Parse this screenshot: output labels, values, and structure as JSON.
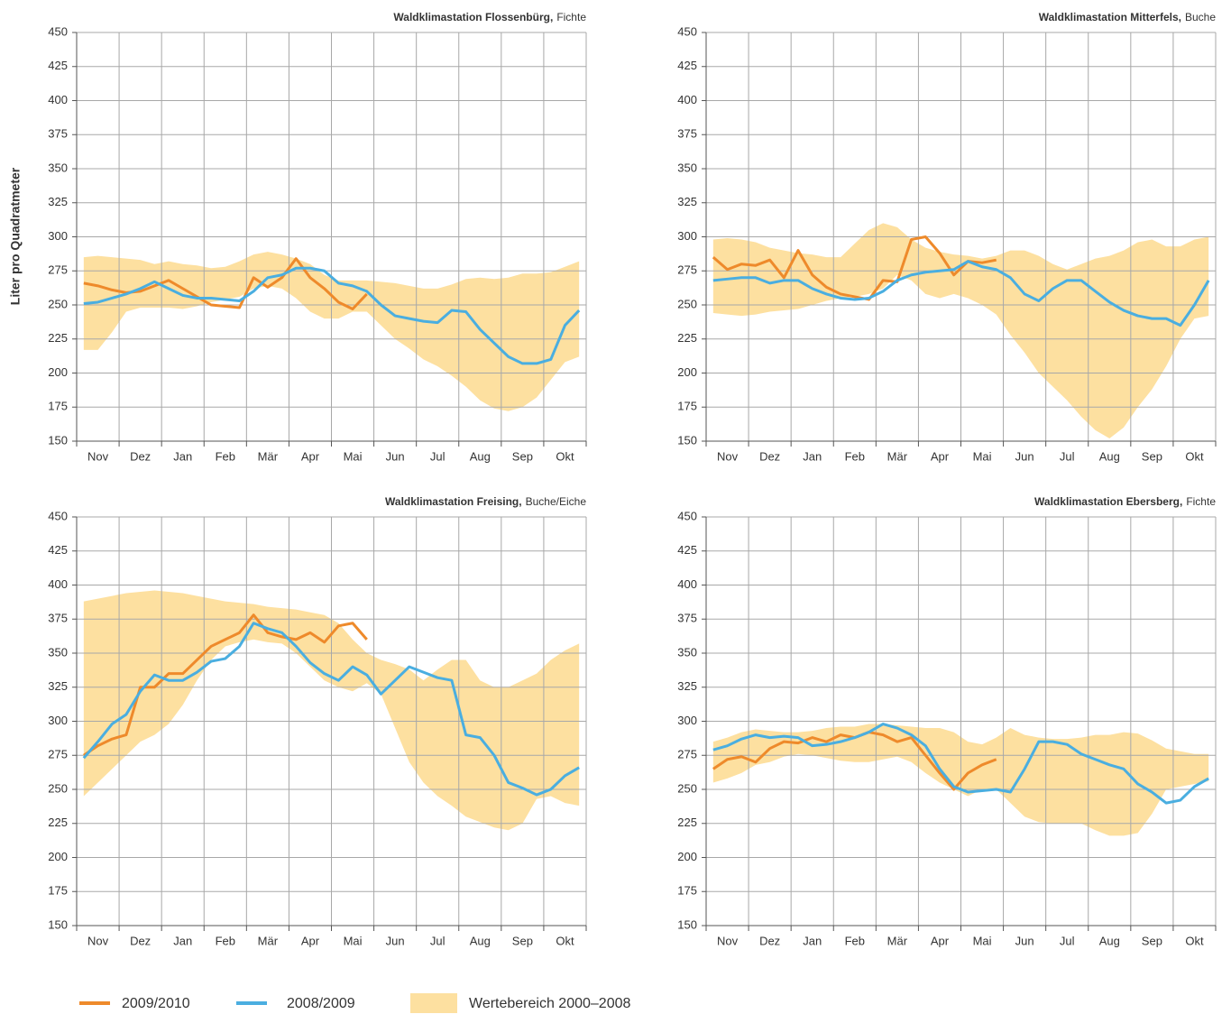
{
  "chart_data": [
    {
      "type": "line",
      "title": "Waldklimastation Flossenbürg,",
      "subtitle": "Fichte",
      "y_label": "Liter pro Quadratmeter",
      "categories": [
        null,
        "Nov",
        null,
        null,
        "Dez",
        null,
        null,
        "Jan",
        null,
        null,
        "Feb",
        null,
        null,
        "Mär",
        null,
        null,
        "Apr",
        null,
        null,
        "Mai",
        null,
        null,
        "Jun",
        null,
        null,
        "Jul",
        null,
        null,
        "Aug",
        null,
        null,
        "Sep",
        null,
        null,
        "Okt",
        null
      ],
      "ylim": [
        150,
        450
      ],
      "yticks": [
        150,
        175,
        200,
        225,
        250,
        275,
        300,
        325,
        350,
        375,
        400,
        425,
        450
      ],
      "grid": true,
      "band": {
        "name": "Wertebereich 2000–2008",
        "color": "#fde0a0",
        "high": [
          285,
          286,
          285,
          284,
          283,
          280,
          282,
          280,
          279,
          277,
          278,
          282,
          287,
          289,
          287,
          284,
          280,
          272,
          268,
          268,
          268,
          267,
          266,
          264,
          262,
          262,
          265,
          269,
          270,
          269,
          270,
          273,
          273,
          274,
          278,
          282
        ],
        "low": [
          217,
          217,
          230,
          245,
          248,
          248,
          248,
          247,
          249,
          252,
          254,
          256,
          262,
          264,
          262,
          255,
          245,
          240,
          240,
          245,
          245,
          235,
          225,
          218,
          210,
          205,
          198,
          190,
          180,
          174,
          172,
          175,
          182,
          195,
          208,
          212
        ]
      },
      "series": [
        {
          "name": "2009/2010",
          "color": "#ee8a2b",
          "values": [
            266,
            264,
            261,
            259,
            260,
            264,
            268,
            262,
            256,
            250,
            249,
            248,
            270,
            263,
            270,
            284,
            270,
            262,
            252,
            247,
            258,
            null,
            null,
            null,
            null,
            null,
            null,
            null,
            null,
            null,
            null,
            null,
            null,
            null,
            null,
            null
          ]
        },
        {
          "name": "2008/2009",
          "color": "#4aaee0",
          "values": [
            251,
            252,
            255,
            258,
            262,
            267,
            262,
            257,
            255,
            255,
            254,
            253,
            260,
            270,
            272,
            277,
            277,
            275,
            266,
            264,
            260,
            250,
            242,
            240,
            238,
            237,
            246,
            245,
            232,
            222,
            212,
            207,
            207,
            210,
            235,
            246
          ]
        }
      ]
    },
    {
      "type": "line",
      "title": "Waldklimastation Mitterfels,",
      "subtitle": "Buche",
      "categories": [
        null,
        "Nov",
        null,
        null,
        "Dez",
        null,
        null,
        "Jan",
        null,
        null,
        "Feb",
        null,
        null,
        "Mär",
        null,
        null,
        "Apr",
        null,
        null,
        "Mai",
        null,
        null,
        "Jun",
        null,
        null,
        "Jul",
        null,
        null,
        "Aug",
        null,
        null,
        "Sep",
        null,
        null,
        "Okt",
        null
      ],
      "ylim": [
        150,
        450
      ],
      "yticks": [
        150,
        175,
        200,
        225,
        250,
        275,
        300,
        325,
        350,
        375,
        400,
        425,
        450
      ],
      "grid": true,
      "band": {
        "name": "Wertebereich 2000–2008",
        "color": "#fde0a0",
        "high": [
          298,
          299,
          298,
          296,
          292,
          290,
          288,
          287,
          285,
          285,
          295,
          305,
          310,
          307,
          298,
          292,
          289,
          287,
          286,
          284,
          286,
          290,
          290,
          286,
          280,
          276,
          280,
          284,
          286,
          290,
          296,
          298,
          293,
          293,
          298,
          300
        ],
        "low": [
          244,
          243,
          242,
          243,
          245,
          246,
          247,
          250,
          253,
          255,
          256,
          258,
          262,
          272,
          268,
          258,
          255,
          258,
          255,
          250,
          243,
          228,
          215,
          200,
          190,
          180,
          168,
          158,
          152,
          160,
          175,
          188,
          205,
          225,
          240,
          242
        ]
      },
      "series": [
        {
          "name": "2009/2010",
          "color": "#ee8a2b",
          "values": [
            285,
            276,
            280,
            279,
            283,
            270,
            290,
            272,
            263,
            258,
            256,
            254,
            268,
            267,
            298,
            300,
            288,
            272,
            282,
            281,
            283,
            null,
            null,
            null,
            null,
            null,
            null,
            null,
            null,
            null,
            null,
            null,
            null,
            null,
            null,
            null
          ]
        },
        {
          "name": "2008/2009",
          "color": "#4aaee0",
          "values": [
            268,
            269,
            270,
            270,
            266,
            268,
            268,
            262,
            258,
            255,
            254,
            255,
            260,
            268,
            272,
            274,
            275,
            276,
            282,
            278,
            276,
            270,
            258,
            253,
            262,
            268,
            268,
            260,
            252,
            246,
            242,
            240,
            240,
            235,
            250,
            268
          ]
        }
      ]
    },
    {
      "type": "line",
      "title": "Waldklimastation Freising,",
      "subtitle": "Buche/Eiche",
      "categories": [
        null,
        "Nov",
        null,
        null,
        "Dez",
        null,
        null,
        "Jan",
        null,
        null,
        "Feb",
        null,
        null,
        "Mär",
        null,
        null,
        "Apr",
        null,
        null,
        "Mai",
        null,
        null,
        "Jun",
        null,
        null,
        "Jul",
        null,
        null,
        "Aug",
        null,
        null,
        "Sep",
        null,
        null,
        "Okt",
        null
      ],
      "ylim": [
        150,
        450
      ],
      "yticks": [
        150,
        175,
        200,
        225,
        250,
        275,
        300,
        325,
        350,
        375,
        400,
        425,
        450
      ],
      "grid": true,
      "band": {
        "name": "Wertebereich 2000–2008",
        "color": "#fde0a0",
        "high": [
          388,
          390,
          392,
          394,
          395,
          396,
          395,
          394,
          392,
          390,
          388,
          387,
          386,
          384,
          383,
          382,
          380,
          378,
          372,
          360,
          350,
          345,
          342,
          338,
          330,
          338,
          345,
          345,
          330,
          325,
          325,
          330,
          335,
          345,
          352,
          357
        ],
        "low": [
          245,
          255,
          265,
          275,
          285,
          290,
          298,
          312,
          330,
          345,
          355,
          358,
          360,
          358,
          357,
          350,
          340,
          330,
          325,
          322,
          328,
          320,
          295,
          270,
          255,
          245,
          238,
          230,
          226,
          222,
          220,
          225,
          243,
          245,
          240,
          238
        ]
      },
      "series": [
        {
          "name": "2009/2010",
          "color": "#ee8a2b",
          "values": [
            275,
            282,
            287,
            290,
            325,
            325,
            335,
            335,
            345,
            355,
            360,
            365,
            378,
            365,
            362,
            360,
            365,
            358,
            370,
            372,
            360,
            null,
            null,
            null,
            null,
            null,
            null,
            null,
            null,
            null,
            null,
            null,
            null,
            null,
            null,
            null
          ]
        },
        {
          "name": "2008/2009",
          "color": "#4aaee0",
          "values": [
            273,
            285,
            298,
            305,
            322,
            334,
            330,
            330,
            336,
            344,
            346,
            355,
            372,
            368,
            365,
            355,
            343,
            335,
            330,
            340,
            334,
            320,
            330,
            340,
            336,
            332,
            330,
            290,
            288,
            275,
            255,
            251,
            246,
            250,
            260,
            266
          ]
        }
      ]
    },
    {
      "type": "line",
      "title": "Waldklimastation Ebersberg,",
      "subtitle": "Fichte",
      "categories": [
        null,
        "Nov",
        null,
        null,
        "Dez",
        null,
        null,
        "Jan",
        null,
        null,
        "Feb",
        null,
        null,
        "Mär",
        null,
        null,
        "Apr",
        null,
        null,
        "Mai",
        null,
        null,
        "Jun",
        null,
        null,
        "Jul",
        null,
        null,
        "Aug",
        null,
        null,
        "Sep",
        null,
        null,
        "Okt",
        null
      ],
      "ylim": [
        150,
        450
      ],
      "yticks": [
        150,
        175,
        200,
        225,
        250,
        275,
        300,
        325,
        350,
        375,
        400,
        425,
        450
      ],
      "grid": true,
      "band": {
        "name": "Wertebereich 2000–2008",
        "color": "#fde0a0",
        "high": [
          285,
          288,
          292,
          294,
          293,
          292,
          292,
          293,
          295,
          296,
          296,
          298,
          298,
          297,
          296,
          295,
          295,
          292,
          285,
          283,
          288,
          295,
          290,
          288,
          287,
          287,
          288,
          290,
          290,
          292,
          291,
          286,
          280,
          278,
          276,
          276
        ],
        "low": [
          255,
          258,
          262,
          268,
          270,
          274,
          276,
          275,
          273,
          271,
          270,
          270,
          272,
          274,
          270,
          262,
          255,
          250,
          245,
          250,
          250,
          240,
          230,
          226,
          225,
          225,
          225,
          220,
          216,
          216,
          218,
          232,
          250,
          252,
          254,
          256
        ]
      },
      "series": [
        {
          "name": "2009/2010",
          "color": "#ee8a2b",
          "values": [
            265,
            272,
            274,
            270,
            280,
            285,
            284,
            288,
            285,
            290,
            288,
            292,
            290,
            285,
            288,
            275,
            262,
            250,
            262,
            268,
            272,
            null,
            null,
            null,
            null,
            null,
            null,
            null,
            null,
            null,
            null,
            null,
            null,
            null,
            null,
            null
          ]
        },
        {
          "name": "2008/2009",
          "color": "#4aaee0",
          "values": [
            279,
            282,
            287,
            290,
            288,
            289,
            288,
            282,
            283,
            285,
            288,
            292,
            298,
            295,
            290,
            282,
            265,
            252,
            248,
            249,
            250,
            248,
            265,
            285,
            285,
            283,
            276,
            272,
            268,
            265,
            254,
            248,
            240,
            242,
            252,
            258
          ]
        }
      ]
    }
  ]
}
